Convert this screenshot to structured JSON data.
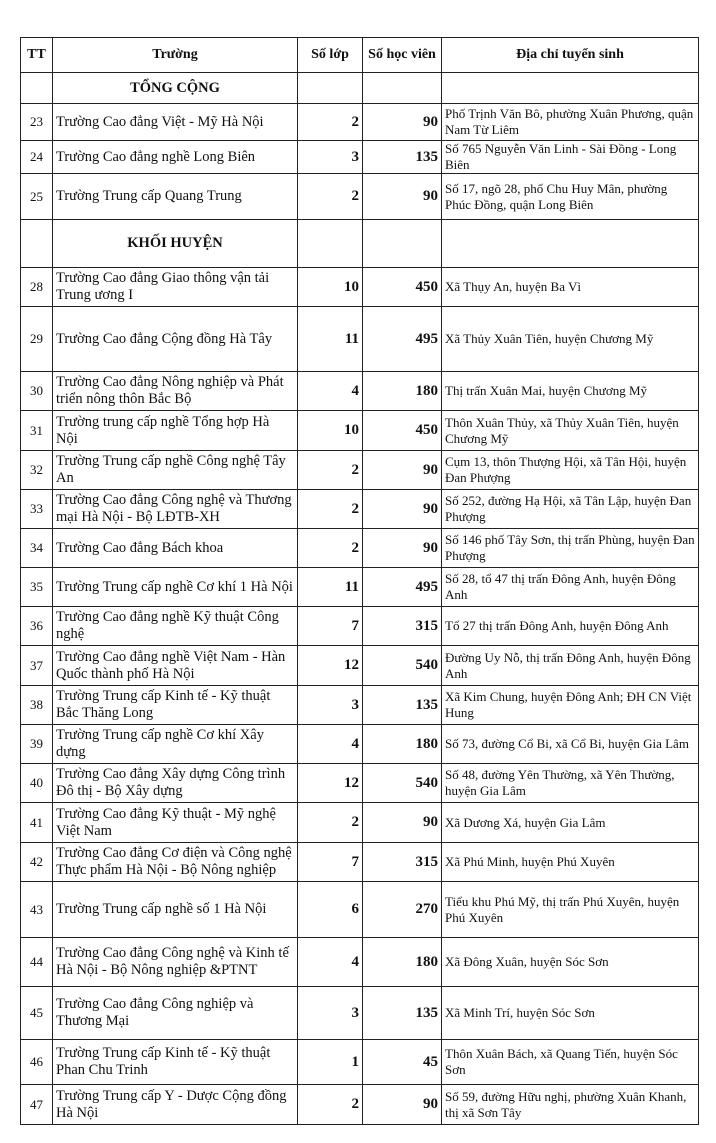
{
  "table": {
    "header": [
      "TT",
      "Trường",
      "Số lớp",
      "Số học viên",
      "Địa chỉ tuyển sinh"
    ],
    "rows": [
      {
        "section": "TỔNG CỘNG"
      },
      {
        "tt": 23,
        "name": "Trường Cao đẳng Việt - Mỹ Hà Nội",
        "classes": 2,
        "students": 90,
        "address": "Phố Trịnh Văn Bô, phường Xuân Phương, quận Nam Từ Liêm"
      },
      {
        "tt": 24,
        "name": "Trường Cao đẳng nghề Long Biên",
        "classes": 3,
        "students": 135,
        "address": "Số 765 Nguyễn Văn Linh - Sài Đồng - Long Biên"
      },
      {
        "tt": 25,
        "name": "Trường Trung cấp Quang Trung",
        "classes": 2,
        "students": 90,
        "address": "Số 17, ngõ 28, phố Chu Huy Mân, phường Phúc Đồng, quận Long Biên"
      },
      {
        "section": "KHỐI HUYỆN"
      },
      {
        "tt": 28,
        "name": "Trường Cao đẳng Giao thông vận tải Trung ương I",
        "classes": 10,
        "students": 450,
        "address": "Xã Thụy An, huyện Ba Vì"
      },
      {
        "tt": 29,
        "name": "Trường Cao đẳng Cộng đồng Hà Tây",
        "classes": 11,
        "students": 495,
        "address": "Xã Thủy Xuân Tiên, huyện Chương Mỹ"
      },
      {
        "tt": 30,
        "name": "Trường Cao đẳng Nông nghiệp và Phát triển nông thôn Bắc Bộ",
        "classes": 4,
        "students": 180,
        "address": "Thị trấn Xuân Mai, huyện Chương Mỹ"
      },
      {
        "tt": 31,
        "name": "Trường trung cấp nghề Tổng hợp Hà Nội",
        "classes": 10,
        "students": 450,
        "address": "Thôn Xuân Thủy, xã Thủy Xuân Tiên, huyện Chương Mỹ"
      },
      {
        "tt": 32,
        "name": "Trường Trung cấp nghề Công nghệ Tây An",
        "classes": 2,
        "students": 90,
        "address": "Cụm 13, thôn Thượng Hội, xã Tân Hội, huyện Đan Phượng"
      },
      {
        "tt": 33,
        "name": "Trường Cao đẳng Công nghệ và Thương mại Hà Nội - Bộ LĐTB-XH",
        "classes": 2,
        "students": 90,
        "address": "Số 252, đường Hạ Hội, xã Tân Lập, huyện Đan Phượng"
      },
      {
        "tt": 34,
        "name": "Trường Cao đẳng Bách khoa",
        "classes": 2,
        "students": 90,
        "address": "Số 146 phố Tây Sơn, thị trấn Phùng, huyện Đan Phượng"
      },
      {
        "tt": 35,
        "name": "Trường Trung cấp nghề Cơ khí 1 Hà Nội",
        "classes": 11,
        "students": 495,
        "address": "Số 28, tổ 47 thị trấn Đông Anh, huyện Đông Anh"
      },
      {
        "tt": 36,
        "name": "Trường Cao đẳng nghề Kỹ thuật Công nghệ",
        "classes": 7,
        "students": 315,
        "address": "Tổ 27 thị trấn Đông Anh, huyện Đông Anh"
      },
      {
        "tt": 37,
        "name": "Trường Cao đẳng nghề Việt Nam - Hàn Quốc thành phố Hà Nội",
        "classes": 12,
        "students": 540,
        "address": "Đường Uy Nỗ, thị trấn Đông Anh, huyện Đông Anh"
      },
      {
        "tt": 38,
        "name": "Trường Trung cấp Kinh tế - Kỹ thuật Bắc Thăng Long",
        "classes": 3,
        "students": 135,
        "address": "Xã Kim Chung, huyện Đông Anh; ĐH CN Việt Hung"
      },
      {
        "tt": 39,
        "name": "Trường Trung cấp nghề Cơ khí Xây dựng",
        "classes": 4,
        "students": 180,
        "address": "Số 73, đường Cổ Bi, xã Cổ Bi, huyện Gia Lâm"
      },
      {
        "tt": 40,
        "name": "Trường Cao đẳng Xây dựng Công trình Đô thị - Bộ Xây dựng",
        "classes": 12,
        "students": 540,
        "address": "Số 48, đường Yên Thường, xã Yên Thường, huyện Gia Lâm"
      },
      {
        "tt": 41,
        "name": "Trường Cao đẳng Kỹ thuật - Mỹ nghệ Việt Nam",
        "classes": 2,
        "students": 90,
        "address": "Xã Dương Xá, huyện Gia Lâm"
      },
      {
        "tt": 42,
        "name": "Trường Cao đẳng Cơ điện và Công nghệ Thực phẩm Hà Nội - Bộ Nông nghiệp &PTNT",
        "classes": 7,
        "students": 315,
        "address": "Xã Phú Minh, huyện Phú Xuyên"
      },
      {
        "tt": 43,
        "name": "Trường Trung cấp nghề số 1 Hà Nội",
        "classes": 6,
        "students": 270,
        "address": "Tiểu khu Phú Mỹ, thị trấn Phú Xuyên, huyện Phú Xuyên"
      },
      {
        "tt": 44,
        "name": "Trường Cao đẳng Công nghệ và Kinh tế Hà Nội - Bộ Nông nghiệp &PTNT",
        "classes": 4,
        "students": 180,
        "address": "Xã Đông Xuân, huyện Sóc Sơn"
      },
      {
        "tt": 45,
        "name": "Trường Cao đẳng Công nghiệp và Thương Mại",
        "classes": 3,
        "students": 135,
        "address": "Xã Minh Trí, huyện Sóc Sơn"
      },
      {
        "tt": 46,
        "name": "Trường Trung cấp Kinh tế - Kỹ thuật Phan Chu Trinh",
        "classes": 1,
        "students": 45,
        "address": "Thôn Xuân Bách, xã Quang Tiến, huyện Sóc Sơn"
      },
      {
        "tt": 47,
        "name": "Trường Trung cấp Y - Dược Cộng đồng Hà Nội",
        "classes": 2,
        "students": 90,
        "address": "Số 59, đường Hữu nghị, phường Xuân Khanh, thị xã Sơn Tây"
      }
    ]
  }
}
